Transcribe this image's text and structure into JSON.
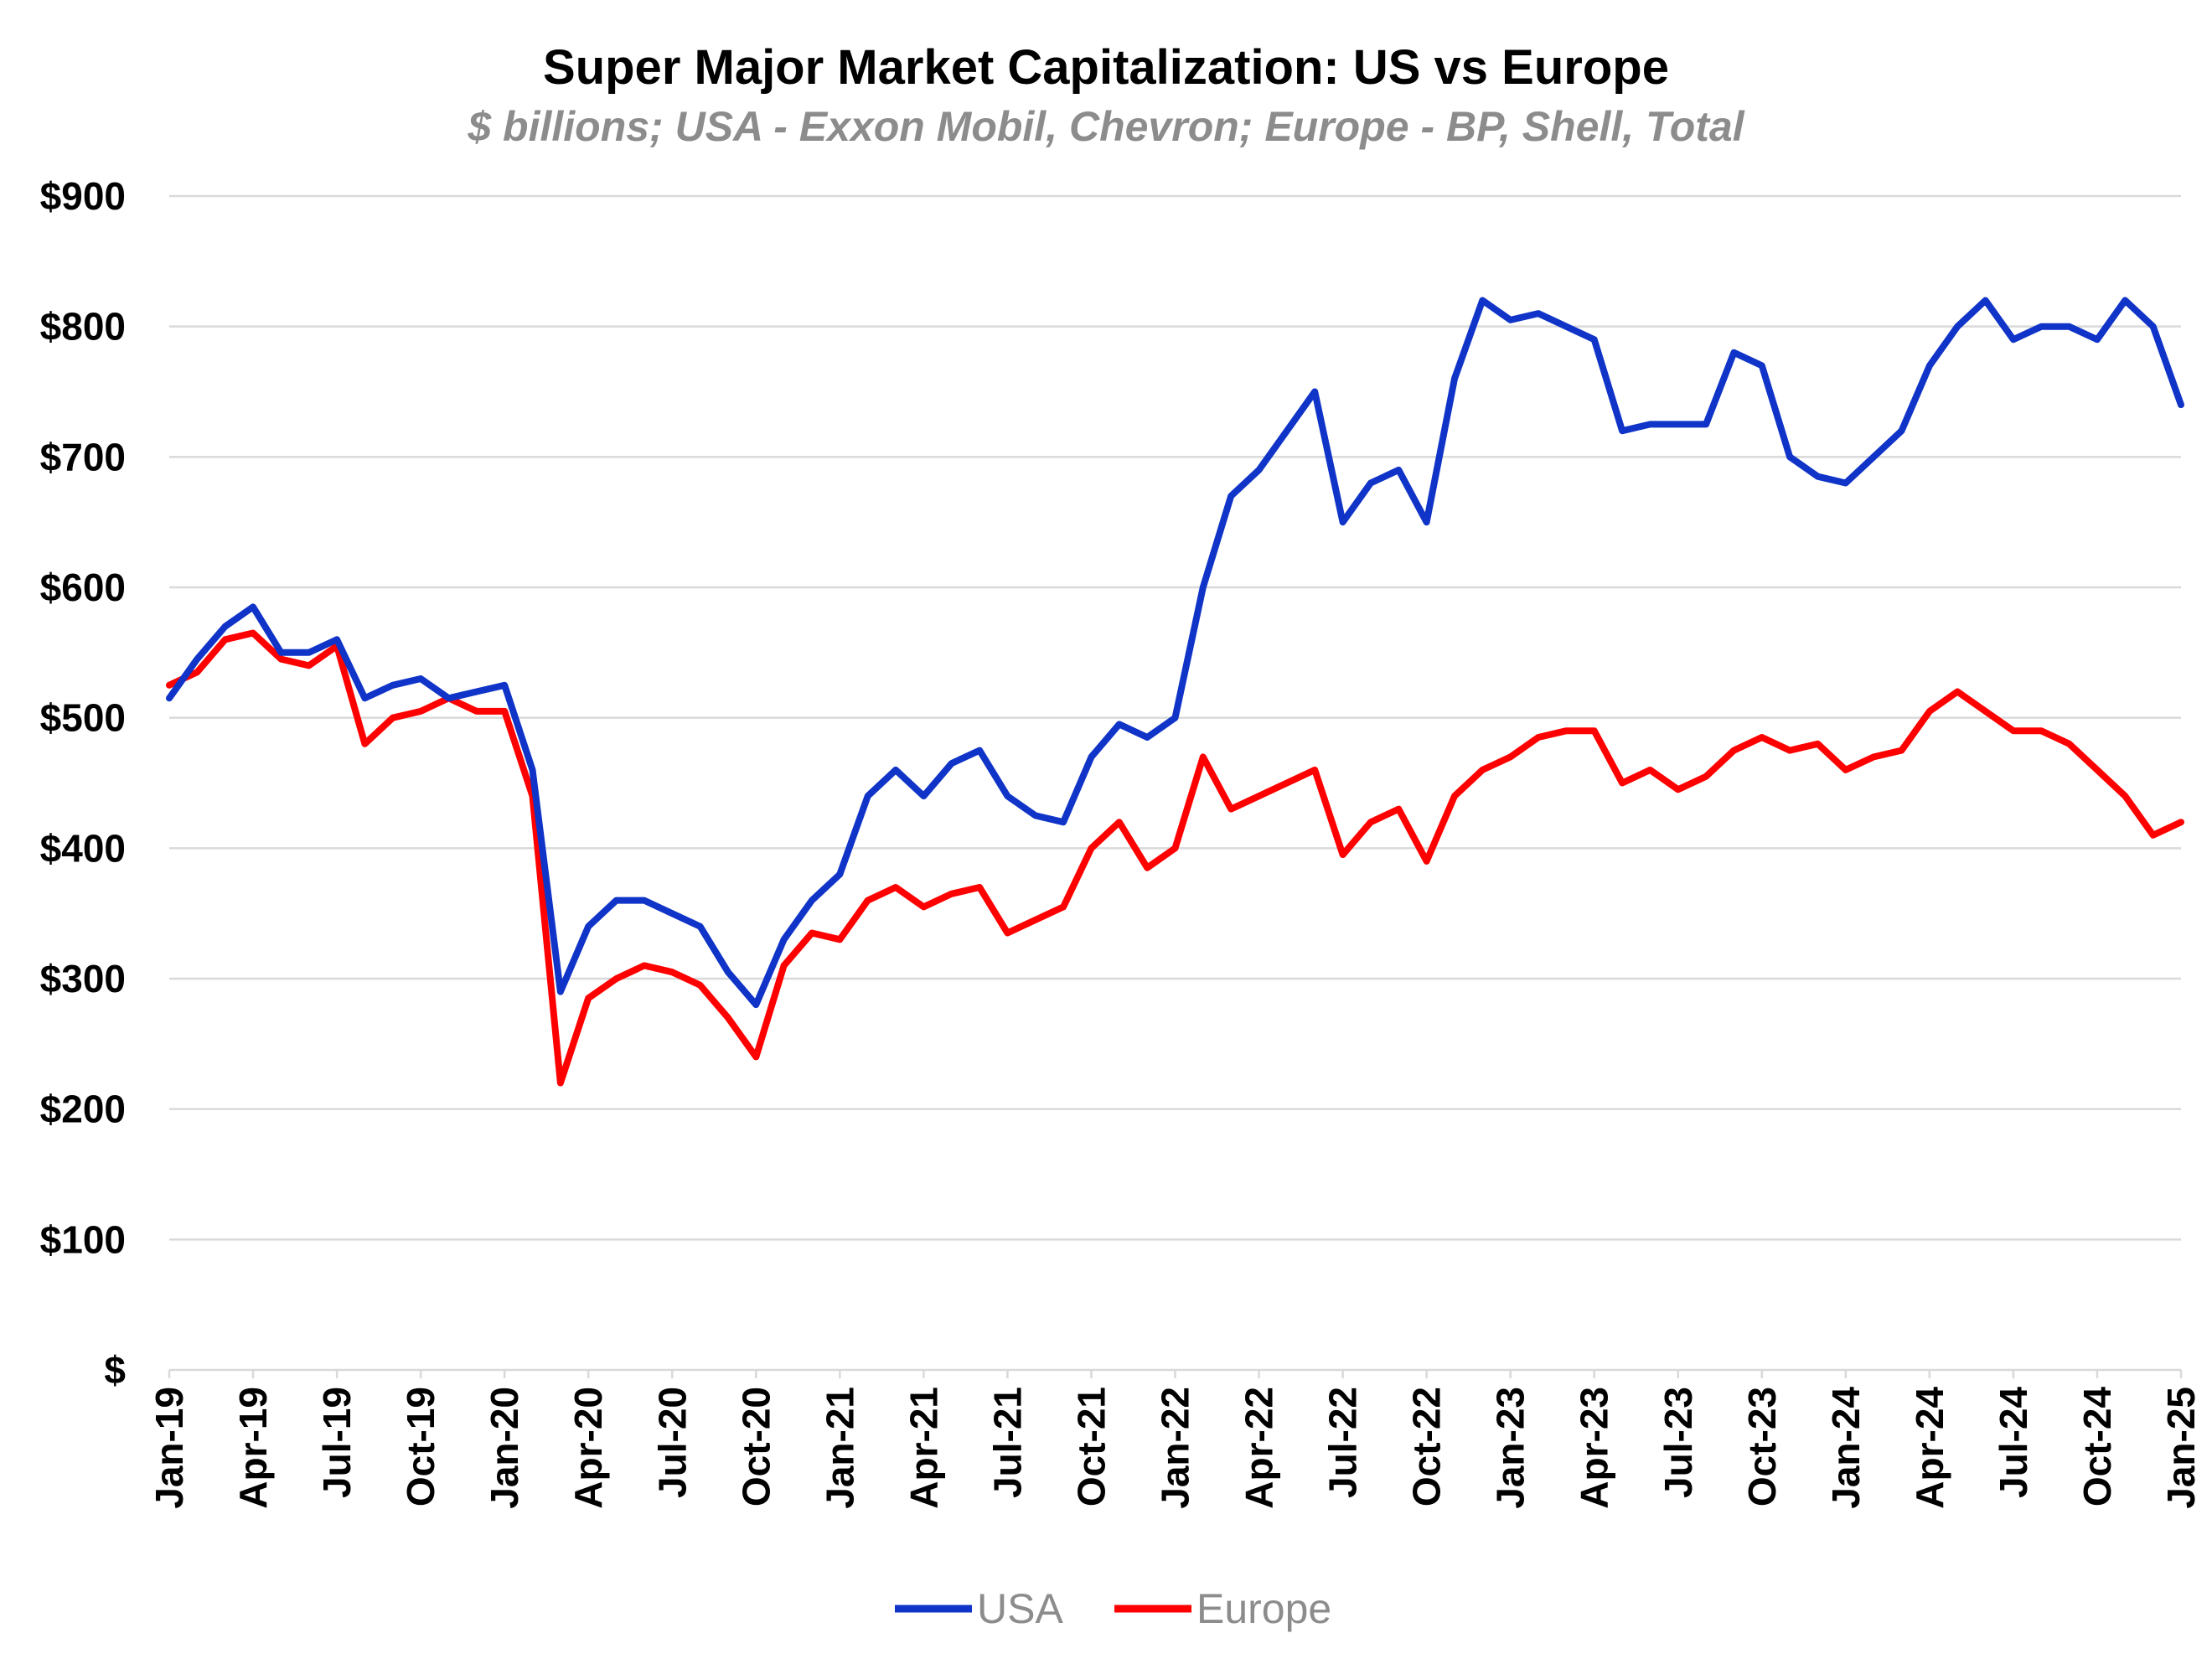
{
  "chart_data": {
    "type": "line",
    "title": "Super Major Market Capitalization: US vs Europe",
    "subtitle": "$ billions; USA - Exxon Mobil, Chevron; Europe - BP, Shell, Total",
    "xlabel": "",
    "ylabel": "",
    "ylim": [
      0,
      900
    ],
    "yticks": [
      0,
      100,
      200,
      300,
      400,
      500,
      600,
      700,
      800,
      900
    ],
    "ytick_labels": [
      "$",
      "$100",
      "$200",
      "$300",
      "$400",
      "$500",
      "$600",
      "$700",
      "$800",
      "$900"
    ],
    "xlim": [
      "2019-01",
      "2025-01"
    ],
    "xtick_labels": [
      "Jan-19",
      "Apr-19",
      "Jul-19",
      "Oct-19",
      "Jan-20",
      "Apr-20",
      "Jul-20",
      "Oct-20",
      "Jan-21",
      "Apr-21",
      "Jul-21",
      "Oct-21",
      "Jan-22",
      "Apr-22",
      "Jul-22",
      "Oct-22",
      "Jan-23",
      "Apr-23",
      "Jul-23",
      "Oct-23",
      "Jan-24",
      "Apr-24",
      "Jul-24",
      "Oct-24",
      "Jan-25"
    ],
    "grid": "horizontal",
    "legend_position": "bottom",
    "colors": {
      "USA": "#1034c8",
      "Europe": "#ff0000"
    },
    "x": [
      "2019-01",
      "2019-02",
      "2019-03",
      "2019-04",
      "2019-05",
      "2019-06",
      "2019-07",
      "2019-08",
      "2019-09",
      "2019-10",
      "2019-11",
      "2019-12",
      "2020-01",
      "2020-02",
      "2020-03",
      "2020-04",
      "2020-05",
      "2020-06",
      "2020-07",
      "2020-08",
      "2020-09",
      "2020-10",
      "2020-11",
      "2020-12",
      "2021-01",
      "2021-02",
      "2021-03",
      "2021-04",
      "2021-05",
      "2021-06",
      "2021-07",
      "2021-08",
      "2021-09",
      "2021-10",
      "2021-11",
      "2021-12",
      "2022-01",
      "2022-02",
      "2022-03",
      "2022-04",
      "2022-05",
      "2022-06",
      "2022-07",
      "2022-08",
      "2022-09",
      "2022-10",
      "2022-11",
      "2022-12",
      "2023-01",
      "2023-02",
      "2023-03",
      "2023-04",
      "2023-05",
      "2023-06",
      "2023-07",
      "2023-08",
      "2023-09",
      "2023-10",
      "2023-11",
      "2023-12",
      "2024-01",
      "2024-02",
      "2024-03",
      "2024-04",
      "2024-05",
      "2024-06",
      "2024-07",
      "2024-08",
      "2024-09",
      "2024-10",
      "2024-11",
      "2024-12",
      "2025-01"
    ],
    "series": [
      {
        "name": "USA",
        "values": [
          515,
          545,
          570,
          585,
          550,
          550,
          560,
          515,
          525,
          530,
          515,
          520,
          525,
          460,
          290,
          340,
          360,
          360,
          350,
          340,
          305,
          280,
          330,
          360,
          380,
          440,
          460,
          440,
          465,
          475,
          440,
          425,
          420,
          470,
          495,
          485,
          500,
          600,
          670,
          690,
          720,
          750,
          650,
          680,
          690,
          650,
          760,
          820,
          805,
          810,
          800,
          790,
          720,
          725,
          725,
          725,
          780,
          770,
          700,
          685,
          680,
          700,
          720,
          770,
          800,
          820,
          790,
          800,
          800,
          790,
          820,
          800,
          740
        ]
      },
      {
        "name": "Europe",
        "values": [
          525,
          535,
          560,
          565,
          545,
          540,
          555,
          480,
          500,
          505,
          515,
          505,
          505,
          440,
          220,
          285,
          300,
          310,
          305,
          295,
          270,
          240,
          310,
          335,
          330,
          360,
          370,
          355,
          365,
          370,
          335,
          345,
          355,
          400,
          420,
          385,
          400,
          470,
          430,
          440,
          450,
          460,
          395,
          420,
          430,
          390,
          440,
          460,
          470,
          485,
          490,
          490,
          450,
          460,
          445,
          455,
          475,
          485,
          475,
          480,
          460,
          470,
          475,
          505,
          520,
          505,
          490,
          490,
          480,
          460,
          440,
          410,
          420
        ]
      }
    ]
  },
  "legend": {
    "items": [
      "USA",
      "Europe"
    ]
  }
}
